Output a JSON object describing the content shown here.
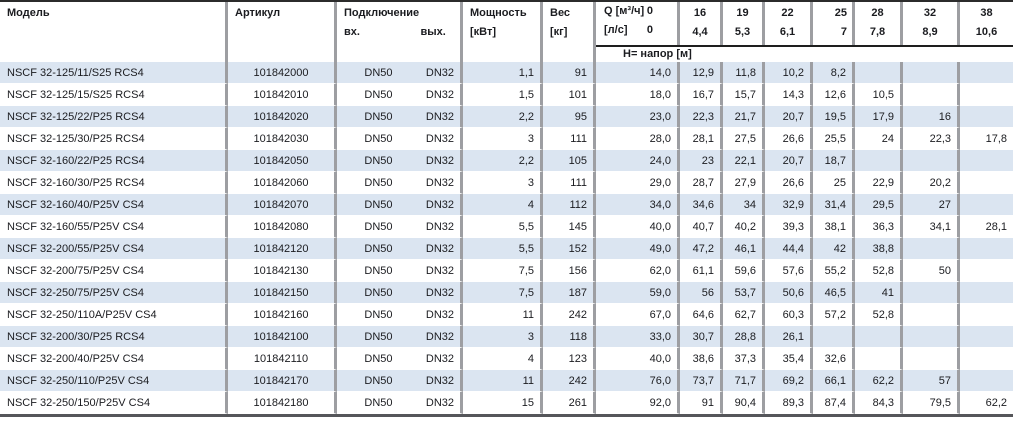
{
  "colors": {
    "row_stripe": "#dbe5f1",
    "grid_line": "#9d9ea2",
    "text": "#1b1c20"
  },
  "table": {
    "columns": {
      "model": "Модель",
      "article": "Артикул",
      "connection": "Подключение",
      "connection_in": "вх.",
      "connection_out": "вых.",
      "power_l1": "Мощность",
      "power_l2": "[кВт]",
      "weight_l1": "Вес",
      "weight_l2": "[кг]",
      "flow_m3h_label": "Q [м³/ч]",
      "flow_m3h_zero": "0",
      "flow_ls_label": "[л/с]",
      "flow_ls_zero": "0",
      "head_row_label": "Н= напор [м]",
      "flow_columns": [
        {
          "m3h": "16",
          "ls": "4,4"
        },
        {
          "m3h": "19",
          "ls": "5,3"
        },
        {
          "m3h": "22",
          "ls": "6,1"
        },
        {
          "m3h": "25",
          "ls": "7"
        },
        {
          "m3h": "28",
          "ls": "7,8"
        },
        {
          "m3h": "32",
          "ls": "8,9"
        },
        {
          "m3h": "38",
          "ls": "10,6"
        }
      ]
    },
    "rows": [
      {
        "model": "NSCF 32-125/11/S25 RCS4",
        "article": "101842000",
        "inlet": "DN50",
        "outlet": "DN32",
        "power": "1,1",
        "weight": "91",
        "head": [
          "14,0",
          "12,9",
          "11,8",
          "10,2",
          "8,2",
          "",
          "",
          ""
        ]
      },
      {
        "model": "NSCF 32-125/15/S25 RCS4",
        "article": "101842010",
        "inlet": "DN50",
        "outlet": "DN32",
        "power": "1,5",
        "weight": "101",
        "head": [
          "18,0",
          "16,7",
          "15,7",
          "14,3",
          "12,6",
          "10,5",
          "",
          ""
        ]
      },
      {
        "model": "NSCF 32-125/22/P25 RCS4",
        "article": "101842020",
        "inlet": "DN50",
        "outlet": "DN32",
        "power": "2,2",
        "weight": "95",
        "head": [
          "23,0",
          "22,3",
          "21,7",
          "20,7",
          "19,5",
          "17,9",
          "16",
          ""
        ]
      },
      {
        "model": "NSCF 32-125/30/P25 RCS4",
        "article": "101842030",
        "inlet": "DN50",
        "outlet": "DN32",
        "power": "3",
        "weight": "111",
        "head": [
          "28,0",
          "28,1",
          "27,5",
          "26,6",
          "25,5",
          "24",
          "22,3",
          "17,8"
        ]
      },
      {
        "model": "NSCF 32-160/22/P25 RCS4",
        "article": "101842050",
        "inlet": "DN50",
        "outlet": "DN32",
        "power": "2,2",
        "weight": "105",
        "head": [
          "24,0",
          "23",
          "22,1",
          "20,7",
          "18,7",
          "",
          "",
          ""
        ]
      },
      {
        "model": "NSCF 32-160/30/P25 RCS4",
        "article": "101842060",
        "inlet": "DN50",
        "outlet": "DN32",
        "power": "3",
        "weight": "111",
        "head": [
          "29,0",
          "28,7",
          "27,9",
          "26,6",
          "25",
          "22,9",
          "20,2",
          ""
        ]
      },
      {
        "model": "NSCF 32-160/40/P25V CS4",
        "article": "101842070",
        "inlet": "DN50",
        "outlet": "DN32",
        "power": "4",
        "weight": "112",
        "head": [
          "34,0",
          "34,6",
          "34",
          "32,9",
          "31,4",
          "29,5",
          "27",
          ""
        ]
      },
      {
        "model": "NSCF 32-160/55/P25V CS4",
        "article": "101842080",
        "inlet": "DN50",
        "outlet": "DN32",
        "power": "5,5",
        "weight": "145",
        "head": [
          "40,0",
          "40,7",
          "40,2",
          "39,3",
          "38,1",
          "36,3",
          "34,1",
          "28,1"
        ]
      },
      {
        "model": "NSCF 32-200/55/P25V CS4",
        "article": "101842120",
        "inlet": "DN50",
        "outlet": "DN32",
        "power": "5,5",
        "weight": "152",
        "head": [
          "49,0",
          "47,2",
          "46,1",
          "44,4",
          "42",
          "38,8",
          "",
          ""
        ]
      },
      {
        "model": "NSCF 32-200/75/P25V CS4",
        "article": "101842130",
        "inlet": "DN50",
        "outlet": "DN32",
        "power": "7,5",
        "weight": "156",
        "head": [
          "62,0",
          "61,1",
          "59,6",
          "57,6",
          "55,2",
          "52,8",
          "50",
          ""
        ]
      },
      {
        "model": "NSCF 32-250/75/P25V CS4",
        "article": "101842150",
        "inlet": "DN50",
        "outlet": "DN32",
        "power": "7,5",
        "weight": "187",
        "head": [
          "59,0",
          "56",
          "53,7",
          "50,6",
          "46,5",
          "41",
          "",
          ""
        ]
      },
      {
        "model": "NSCF 32-250/110A/P25V CS4",
        "article": "101842160",
        "inlet": "DN50",
        "outlet": "DN32",
        "power": "11",
        "weight": "242",
        "head": [
          "67,0",
          "64,6",
          "62,7",
          "60,3",
          "57,2",
          "52,8",
          "",
          ""
        ]
      },
      {
        "model": "NSCF 32-200/30/P25 RCS4",
        "article": "101842100",
        "inlet": "DN50",
        "outlet": "DN32",
        "power": "3",
        "weight": "118",
        "head": [
          "33,0",
          "30,7",
          "28,8",
          "26,1",
          "",
          "",
          "",
          ""
        ]
      },
      {
        "model": "NSCF 32-200/40/P25V CS4",
        "article": "101842110",
        "inlet": "DN50",
        "outlet": "DN32",
        "power": "4",
        "weight": "123",
        "head": [
          "40,0",
          "38,6",
          "37,3",
          "35,4",
          "32,6",
          "",
          "",
          ""
        ]
      },
      {
        "model": "NSCF 32-250/110/P25V CS4",
        "article": "101842170",
        "inlet": "DN50",
        "outlet": "DN32",
        "power": "11",
        "weight": "242",
        "head": [
          "76,0",
          "73,7",
          "71,7",
          "69,2",
          "66,1",
          "62,2",
          "57",
          ""
        ]
      },
      {
        "model": "NSCF 32-250/150/P25V CS4",
        "article": "101842180",
        "inlet": "DN50",
        "outlet": "DN32",
        "power": "15",
        "weight": "261",
        "head": [
          "92,0",
          "91",
          "90,4",
          "89,3",
          "87,4",
          "84,3",
          "79,5",
          "62,2"
        ]
      }
    ]
  }
}
